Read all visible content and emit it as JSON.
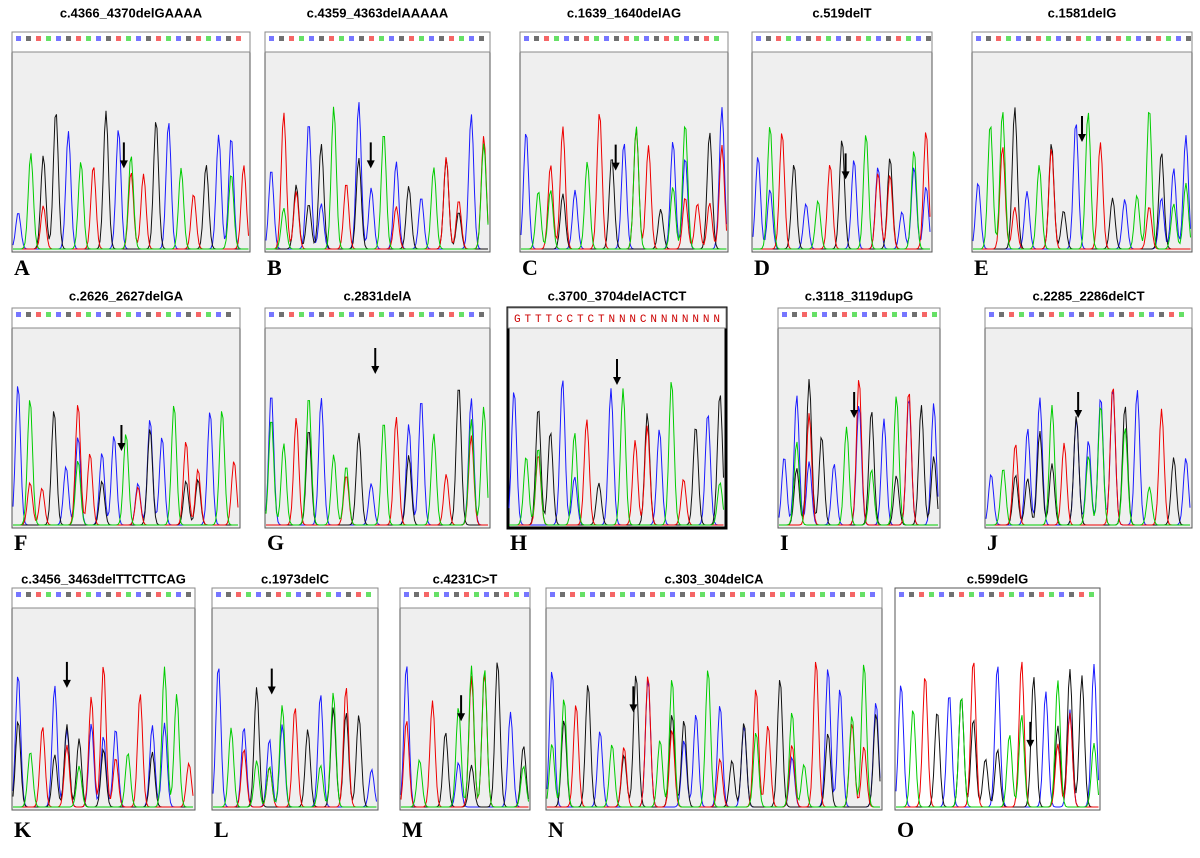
{
  "panels": [
    {
      "title": "c.4366_4370delGAAAA",
      "label": "A"
    },
    {
      "title": "c.4359_4363delAAAAA",
      "label": "B"
    },
    {
      "title": "c.1639_1640delAG",
      "label": "C"
    },
    {
      "title": "c.519delT",
      "label": "D"
    },
    {
      "title": "c.1581delG",
      "label": "E"
    },
    {
      "title": "c.2626_2627delGA",
      "label": "F"
    },
    {
      "title": "c.2831delA",
      "label": "G"
    },
    {
      "title": "c.3700_3704delACTCT",
      "label": "H",
      "sequence": "GTTTCCTCTNNNCNNNNNNN"
    },
    {
      "title": "c.3118_3119dupG",
      "label": "I"
    },
    {
      "title": "c.2285_2286delCT",
      "label": "J"
    },
    {
      "title": "c.3456_3463delTTCTTCAG",
      "label": "K"
    },
    {
      "title": "c.1973delC",
      "label": "L"
    },
    {
      "title": "c.4231C>T",
      "label": "M"
    },
    {
      "title": "c.303_304delCA",
      "label": "N"
    },
    {
      "title": "c.599delG",
      "label": "O"
    }
  ]
}
